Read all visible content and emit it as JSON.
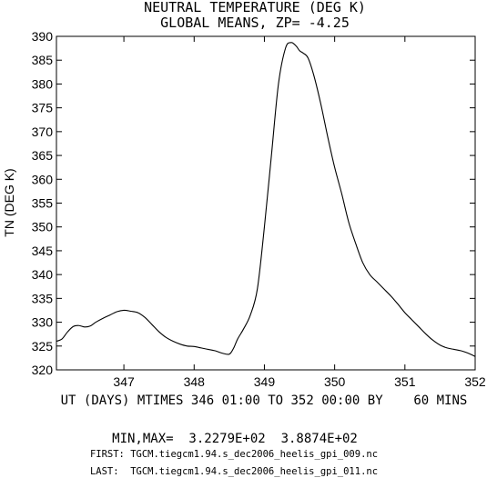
{
  "chart_data": {
    "type": "line",
    "title": "NEUTRAL TEMPERATURE (DEG K)",
    "subtitle": "GLOBAL MEANS, ZP= -4.25",
    "ylabel": "TN (DEG K)",
    "xlabel": "UT (DAYS) MTIMES 346 01:00 TO 352 00:00 BY    60 MINS",
    "xlim": [
      346.04,
      352.0
    ],
    "ylim": [
      320,
      390
    ],
    "x_ticks": [
      347,
      348,
      349,
      350,
      351,
      352
    ],
    "y_ticks": [
      320,
      325,
      330,
      335,
      340,
      345,
      350,
      355,
      360,
      365,
      370,
      375,
      380,
      385,
      390
    ],
    "grid": false,
    "series": [
      {
        "x": [
          346.04,
          346.12,
          346.2,
          346.28,
          346.36,
          346.44,
          346.52,
          346.6,
          346.7,
          346.8,
          346.9,
          347.0,
          347.1,
          347.2,
          347.3,
          347.4,
          347.5,
          347.6,
          347.7,
          347.8,
          347.9,
          348.0,
          348.1,
          348.2,
          348.3,
          348.4,
          348.5,
          348.56,
          348.62,
          348.7,
          348.8,
          348.9,
          349.0,
          349.1,
          349.2,
          349.3,
          349.38,
          349.45,
          349.5,
          349.55,
          349.62,
          349.7,
          349.8,
          349.9,
          350.0,
          350.1,
          350.2,
          350.3,
          350.4,
          350.5,
          350.6,
          350.7,
          350.8,
          350.9,
          351.0,
          351.1,
          351.2,
          351.3,
          351.4,
          351.5,
          351.6,
          351.7,
          351.8,
          351.9,
          352.0
        ],
        "y": [
          326.0,
          326.5,
          328.0,
          329.1,
          329.3,
          329.0,
          329.2,
          330.0,
          330.8,
          331.5,
          332.2,
          332.5,
          332.3,
          332.0,
          331.0,
          329.5,
          328.0,
          326.8,
          326.0,
          325.4,
          325.0,
          324.9,
          324.6,
          324.3,
          324.0,
          323.5,
          323.3,
          324.5,
          326.5,
          328.5,
          331.5,
          337.0,
          350.0,
          365.0,
          380.0,
          387.5,
          388.7,
          388.0,
          387.0,
          386.5,
          385.5,
          382.0,
          376.0,
          369.0,
          362.5,
          357.0,
          351.0,
          346.5,
          342.5,
          340.0,
          338.5,
          337.0,
          335.5,
          333.8,
          332.0,
          330.5,
          329.0,
          327.5,
          326.2,
          325.2,
          324.6,
          324.3,
          324.0,
          323.5,
          322.8
        ]
      }
    ]
  },
  "footer": {
    "minmax": "MIN,MAX=  3.2279E+02  3.8874E+02",
    "first": "FIRST: TGCM.tiegcm1.94.s_dec2006_heelis_gpi_009.nc",
    "last": "LAST:  TGCM.tiegcm1.94.s_dec2006_heelis_gpi_011.nc"
  }
}
